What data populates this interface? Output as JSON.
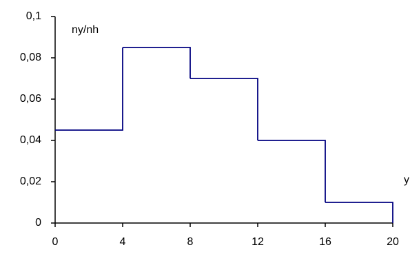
{
  "chart_data": {
    "type": "histogram",
    "y_label": "ny/nh",
    "x_label": "y",
    "bins": [
      0,
      4,
      8,
      12,
      16,
      20
    ],
    "values": [
      0.045,
      0.085,
      0.07,
      0.04,
      0.01
    ],
    "color": "#000080",
    "xlim": [
      0,
      20
    ],
    "xticks": [
      0,
      4,
      8,
      12,
      16,
      20
    ],
    "ylim": [
      0,
      0.1
    ],
    "yticks": [
      0,
      {
        "value": 0.02,
        "label": "0,02"
      },
      {
        "value": 0.04,
        "label": "0,04"
      },
      {
        "value": 0.06,
        "label": "0,06"
      },
      {
        "value": 0.08,
        "label": "0,08"
      },
      {
        "value": 0.1,
        "label": "0,1"
      }
    ],
    "grid": false
  }
}
